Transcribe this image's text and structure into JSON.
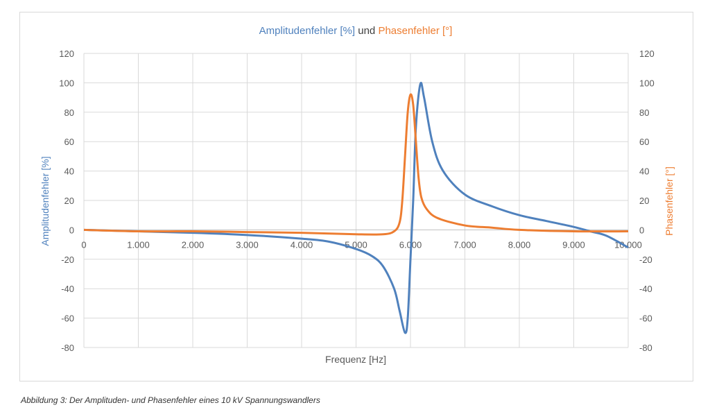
{
  "chart_data": {
    "type": "line",
    "title": {
      "part1": "Amplitudenfehler [%]",
      "part2": " und ",
      "part3": "Phasenfehler [°]"
    },
    "xlabel": "Frequenz [Hz]",
    "ylabel_left": "Amplitudenfehler [%]",
    "ylabel_right": "Phasenfehler [°]",
    "xlim": [
      0,
      10000
    ],
    "ylim": [
      -80,
      120
    ],
    "x_ticks": [
      0,
      1000,
      2000,
      3000,
      4000,
      5000,
      6000,
      7000,
      8000,
      9000,
      10000
    ],
    "x_tick_labels": [
      "0",
      "1.000",
      "2.000",
      "3.000",
      "4.000",
      "5.000",
      "6.000",
      "7.000",
      "8.000",
      "9.000",
      "10.000"
    ],
    "y_ticks": [
      -80,
      -60,
      -40,
      -20,
      0,
      20,
      40,
      60,
      80,
      100,
      120
    ],
    "grid": true,
    "colors": {
      "amplitude": "#4f81bd",
      "phase": "#ed7d31",
      "axis_text": "#595959"
    },
    "series": [
      {
        "name": "Amplitudenfehler [%]",
        "axis": "left",
        "x": [
          0,
          1000,
          2000,
          3000,
          4000,
          4500,
          5000,
          5300,
          5500,
          5700,
          5800,
          5900,
          5950,
          6000,
          6050,
          6100,
          6180,
          6250,
          6400,
          6600,
          7000,
          7500,
          8000,
          8500,
          9000,
          9300,
          9600,
          10000
        ],
        "y": [
          0,
          -1,
          -2,
          -3.5,
          -6,
          -8,
          -13,
          -18,
          -25,
          -40,
          -55,
          -70,
          -60,
          -20,
          20,
          70,
          99,
          90,
          60,
          40,
          24,
          16,
          10,
          6,
          2,
          -1,
          -4,
          -12
        ]
      },
      {
        "name": "Phasenfehler [°]",
        "axis": "right",
        "x": [
          0,
          1000,
          2000,
          3000,
          4000,
          5000,
          5500,
          5700,
          5800,
          5850,
          5900,
          5950,
          6000,
          6050,
          6100,
          6150,
          6200,
          6300,
          6500,
          7000,
          7500,
          8000,
          9000,
          10000
        ],
        "y": [
          0,
          -1,
          -1,
          -1.5,
          -2,
          -3,
          -3,
          -1,
          5,
          20,
          50,
          80,
          92,
          85,
          60,
          35,
          22,
          14,
          8,
          3,
          1.5,
          0,
          -1,
          -1
        ]
      }
    ]
  },
  "caption": "Abbildung 3: Der Amplituden- und Phasenfehler eines 10 kV Spannungswandlers"
}
